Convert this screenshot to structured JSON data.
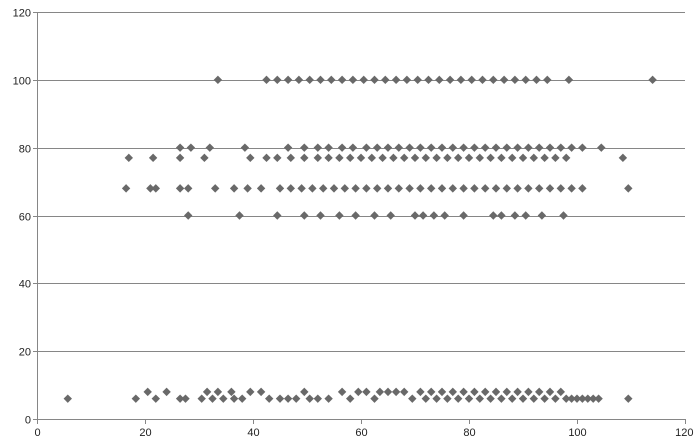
{
  "chart_data": {
    "type": "scatter",
    "title": "",
    "xlabel": "",
    "ylabel": "",
    "xlim": [
      0,
      120
    ],
    "ylim": [
      0,
      120
    ],
    "x_ticks": [
      "0",
      "20",
      "40",
      "60",
      "80",
      "100",
      "120"
    ],
    "y_ticks": [
      "0",
      "20",
      "40",
      "60",
      "80",
      "100",
      "120"
    ],
    "grid": "horizontal",
    "legend": "none",
    "marker": "diamond",
    "marker_color": "#696969",
    "series": [
      {
        "points": [
          [
            5.7,
            6
          ],
          [
            18.3,
            6
          ],
          [
            20.5,
            8
          ],
          [
            22,
            6
          ],
          [
            24,
            8
          ],
          [
            26.5,
            6
          ],
          [
            27.5,
            6
          ],
          [
            30.5,
            6
          ],
          [
            31.5,
            8
          ],
          [
            32.5,
            6
          ],
          [
            33.5,
            8
          ],
          [
            34.5,
            6
          ],
          [
            36,
            8
          ],
          [
            36.5,
            6
          ],
          [
            38,
            6
          ],
          [
            39.5,
            8
          ],
          [
            41.5,
            8
          ],
          [
            43,
            6
          ],
          [
            45,
            6
          ],
          [
            46.5,
            6
          ],
          [
            48,
            6
          ],
          [
            49.5,
            8
          ],
          [
            50.5,
            6
          ],
          [
            52,
            6
          ],
          [
            54,
            6
          ],
          [
            56.5,
            8
          ],
          [
            58,
            6
          ],
          [
            59.5,
            8
          ],
          [
            61,
            8
          ],
          [
            62.5,
            6
          ],
          [
            63.5,
            8
          ],
          [
            65,
            8
          ],
          [
            66.5,
            8
          ],
          [
            68,
            8
          ],
          [
            69.5,
            6
          ],
          [
            71,
            8
          ],
          [
            72,
            6
          ],
          [
            73,
            8
          ],
          [
            74,
            6
          ],
          [
            75,
            8
          ],
          [
            76,
            6
          ],
          [
            77,
            8
          ],
          [
            78,
            6
          ],
          [
            79,
            8
          ],
          [
            80,
            6
          ],
          [
            81,
            8
          ],
          [
            82,
            6
          ],
          [
            83,
            8
          ],
          [
            84,
            6
          ],
          [
            85,
            8
          ],
          [
            86,
            6
          ],
          [
            87,
            8
          ],
          [
            88,
            6
          ],
          [
            89,
            8
          ],
          [
            90,
            6
          ],
          [
            91,
            8
          ],
          [
            92,
            6
          ],
          [
            93,
            8
          ],
          [
            94,
            6
          ],
          [
            95,
            8
          ],
          [
            96,
            6
          ],
          [
            97,
            8
          ],
          [
            98,
            6
          ],
          [
            99,
            6
          ],
          [
            100,
            6
          ],
          [
            101,
            6
          ],
          [
            102,
            6
          ],
          [
            103,
            6
          ],
          [
            104,
            6
          ],
          [
            109.5,
            6
          ],
          [
            16.5,
            68
          ],
          [
            21,
            68
          ],
          [
            22,
            68
          ],
          [
            26.5,
            68
          ],
          [
            28,
            68
          ],
          [
            33,
            68
          ],
          [
            36.5,
            68
          ],
          [
            39,
            68
          ],
          [
            41.5,
            68
          ],
          [
            45,
            68
          ],
          [
            47,
            68
          ],
          [
            49,
            68
          ],
          [
            51,
            68
          ],
          [
            53,
            68
          ],
          [
            55,
            68
          ],
          [
            57,
            68
          ],
          [
            59,
            68
          ],
          [
            61,
            68
          ],
          [
            63,
            68
          ],
          [
            65,
            68
          ],
          [
            67,
            68
          ],
          [
            69,
            68
          ],
          [
            71,
            68
          ],
          [
            73,
            68
          ],
          [
            75,
            68
          ],
          [
            77,
            68
          ],
          [
            79,
            68
          ],
          [
            81,
            68
          ],
          [
            83,
            68
          ],
          [
            85,
            68
          ],
          [
            87,
            68
          ],
          [
            89,
            68
          ],
          [
            91,
            68
          ],
          [
            93,
            68
          ],
          [
            95,
            68
          ],
          [
            97,
            68
          ],
          [
            99,
            68
          ],
          [
            101,
            68
          ],
          [
            109.5,
            68
          ],
          [
            17,
            77
          ],
          [
            21.5,
            77
          ],
          [
            26.5,
            77
          ],
          [
            31,
            77
          ],
          [
            39.5,
            77
          ],
          [
            42.5,
            77
          ],
          [
            44.5,
            77
          ],
          [
            47,
            77
          ],
          [
            49.5,
            77
          ],
          [
            52,
            77
          ],
          [
            54,
            77
          ],
          [
            56,
            77
          ],
          [
            58,
            77
          ],
          [
            60,
            77
          ],
          [
            62,
            77
          ],
          [
            64,
            77
          ],
          [
            66,
            77
          ],
          [
            68,
            77
          ],
          [
            70,
            77
          ],
          [
            72,
            77
          ],
          [
            74,
            77
          ],
          [
            76,
            77
          ],
          [
            78,
            77
          ],
          [
            80,
            77
          ],
          [
            82,
            77
          ],
          [
            84,
            77
          ],
          [
            86,
            77
          ],
          [
            88,
            77
          ],
          [
            90,
            77
          ],
          [
            92,
            77
          ],
          [
            94,
            77
          ],
          [
            96,
            77
          ],
          [
            98,
            77
          ],
          [
            108.5,
            77
          ],
          [
            26.5,
            80
          ],
          [
            28.5,
            80
          ],
          [
            32,
            80
          ],
          [
            38.5,
            80
          ],
          [
            46.5,
            80
          ],
          [
            49.5,
            80
          ],
          [
            52,
            80
          ],
          [
            54,
            80
          ],
          [
            56.5,
            80
          ],
          [
            58.5,
            80
          ],
          [
            61,
            80
          ],
          [
            63,
            80
          ],
          [
            65,
            80
          ],
          [
            67,
            80
          ],
          [
            69,
            80
          ],
          [
            71,
            80
          ],
          [
            73,
            80
          ],
          [
            75,
            80
          ],
          [
            77,
            80
          ],
          [
            79,
            80
          ],
          [
            81,
            80
          ],
          [
            83,
            80
          ],
          [
            85,
            80
          ],
          [
            87,
            80
          ],
          [
            89,
            80
          ],
          [
            91,
            80
          ],
          [
            93,
            80
          ],
          [
            95,
            80
          ],
          [
            97,
            80
          ],
          [
            99,
            80
          ],
          [
            101,
            80
          ],
          [
            104.5,
            80
          ],
          [
            28,
            60
          ],
          [
            37.5,
            60
          ],
          [
            44.5,
            60
          ],
          [
            49.5,
            60
          ],
          [
            52.5,
            60
          ],
          [
            56,
            60
          ],
          [
            59,
            60
          ],
          [
            62.5,
            60
          ],
          [
            65.5,
            60
          ],
          [
            70,
            60
          ],
          [
            71.5,
            60
          ],
          [
            73.5,
            60
          ],
          [
            75.5,
            60
          ],
          [
            79,
            60
          ],
          [
            84.5,
            60
          ],
          [
            86,
            60
          ],
          [
            88.5,
            60
          ],
          [
            90.5,
            60
          ],
          [
            93.5,
            60
          ],
          [
            97.5,
            60
          ],
          [
            33.5,
            100
          ],
          [
            42.5,
            100
          ],
          [
            44.5,
            100
          ],
          [
            46.5,
            100
          ],
          [
            48.5,
            100
          ],
          [
            50.5,
            100
          ],
          [
            52.5,
            100
          ],
          [
            54.5,
            100
          ],
          [
            56.5,
            100
          ],
          [
            58.5,
            100
          ],
          [
            60.5,
            100
          ],
          [
            62.5,
            100
          ],
          [
            64.5,
            100
          ],
          [
            66.5,
            100
          ],
          [
            68.5,
            100
          ],
          [
            70.5,
            100
          ],
          [
            72.5,
            100
          ],
          [
            74.5,
            100
          ],
          [
            76.5,
            100
          ],
          [
            78.5,
            100
          ],
          [
            80.5,
            100
          ],
          [
            82.5,
            100
          ],
          [
            84.5,
            100
          ],
          [
            86.5,
            100
          ],
          [
            88.5,
            100
          ],
          [
            90.5,
            100
          ],
          [
            92.5,
            100
          ],
          [
            94.5,
            100
          ],
          [
            98.5,
            100
          ],
          [
            114,
            100
          ]
        ]
      }
    ]
  }
}
